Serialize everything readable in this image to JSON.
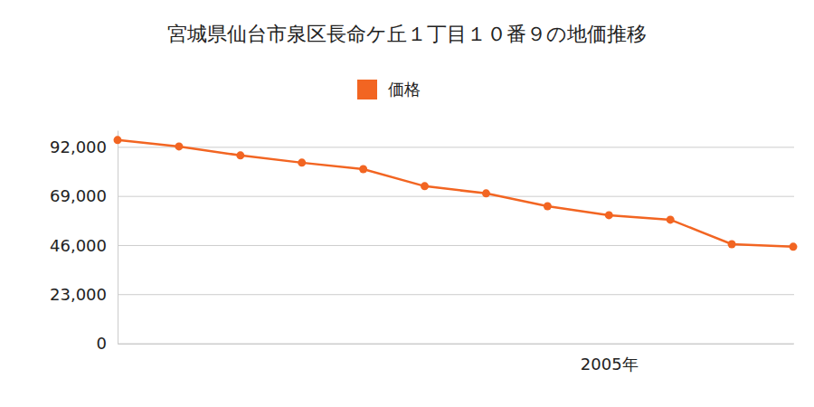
{
  "chart_data": {
    "type": "line",
    "title": "宮城県仙台市泉区長命ケ丘１丁目１０番９の地価推移",
    "categories": [
      null,
      null,
      null,
      null,
      null,
      null,
      null,
      null,
      "2005年",
      null,
      null,
      null
    ],
    "series": [
      {
        "name": "価格",
        "color": "#f26522",
        "marker": "circle",
        "values": [
          95400,
          92400,
          88200,
          84800,
          81800,
          73800,
          70400,
          64400,
          60200,
          58100,
          46600,
          45400
        ]
      }
    ],
    "ylim": [
      0,
      100000
    ],
    "yticks": [
      0,
      {
        "value": 23000,
        "label": "23,000"
      },
      {
        "value": 46000,
        "label": "46,000"
      },
      {
        "value": 69000,
        "label": "69,000"
      },
      {
        "value": 92000,
        "label": "92,000"
      }
    ],
    "grid": true,
    "legend": "top"
  }
}
